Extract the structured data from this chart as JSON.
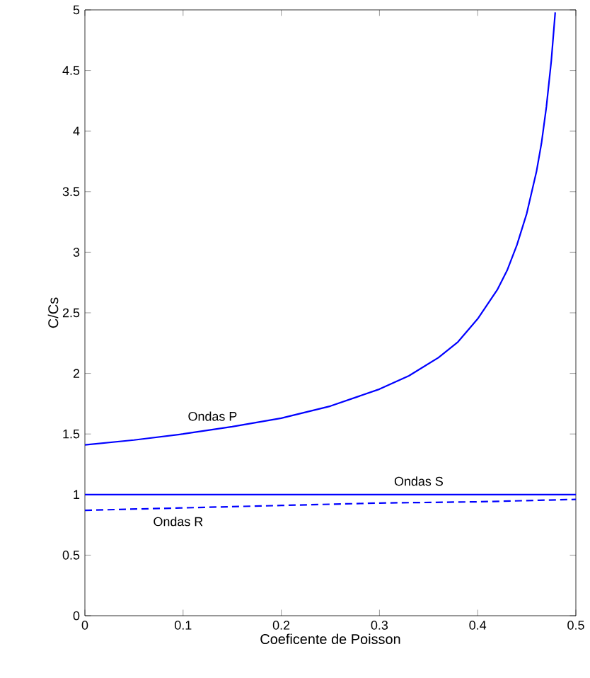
{
  "chart_data": {
    "type": "line",
    "xlabel": "Coeficente de Poisson",
    "ylabel": "C/Cs",
    "xlim": [
      0,
      0.5
    ],
    "ylim": [
      0,
      5
    ],
    "xticks": [
      0,
      0.1,
      0.2,
      0.3,
      0.4,
      0.5
    ],
    "yticks": [
      0,
      0.5,
      1,
      1.5,
      2,
      2.5,
      3,
      3.5,
      4,
      4.5,
      5
    ],
    "grid": false,
    "marker": "none",
    "series": [
      {
        "name": "Ondas P",
        "color": "#0000ff",
        "line_style": "solid",
        "x": [
          0,
          0.05,
          0.1,
          0.15,
          0.2,
          0.25,
          0.3,
          0.33,
          0.36,
          0.38,
          0.4,
          0.42,
          0.43,
          0.44,
          0.45,
          0.46,
          0.465,
          0.47,
          0.475,
          0.479
        ],
        "values": [
          1.41,
          1.45,
          1.5,
          1.56,
          1.63,
          1.73,
          1.87,
          1.98,
          2.13,
          2.26,
          2.45,
          2.69,
          2.85,
          3.06,
          3.32,
          3.67,
          3.9,
          4.2,
          4.58,
          4.98
        ]
      },
      {
        "name": "Ondas S",
        "color": "#0000ff",
        "line_style": "solid",
        "x": [
          0,
          0.5
        ],
        "values": [
          1,
          1
        ]
      },
      {
        "name": "Ondas R",
        "color": "#0000ff",
        "line_style": "dashed",
        "x": [
          0,
          0.1,
          0.2,
          0.3,
          0.4,
          0.5
        ],
        "values": [
          0.87,
          0.89,
          0.91,
          0.93,
          0.94,
          0.96
        ]
      }
    ]
  }
}
